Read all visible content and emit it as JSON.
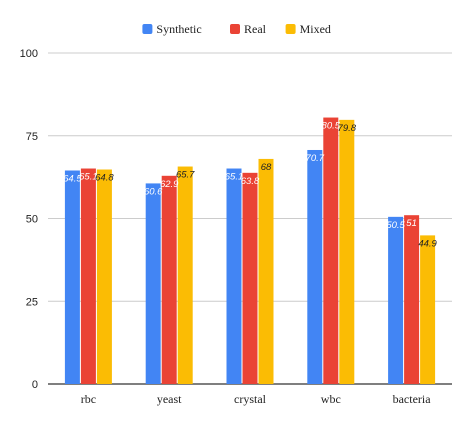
{
  "chart_data": {
    "type": "bar",
    "categories": [
      "rbc",
      "yeast",
      "crystal",
      "wbc",
      "bacteria"
    ],
    "series": [
      {
        "name": "Synthetic",
        "color": "#4285F4",
        "label_color": "#ffffff",
        "values": [
          64.5,
          60.6,
          65.1,
          70.7,
          50.5
        ]
      },
      {
        "name": "Real",
        "color": "#EA4335",
        "label_color": "#ffffff",
        "values": [
          65.1,
          62.9,
          63.8,
          80.5,
          51
        ]
      },
      {
        "name": "Mixed",
        "color": "#FBBC04",
        "label_color": "#222222",
        "values": [
          64.8,
          65.7,
          68,
          79.8,
          44.9
        ]
      }
    ],
    "yticks": [
      "0",
      "25",
      "50",
      "75",
      "100"
    ],
    "ylim": [
      0,
      100
    ],
    "grid": true,
    "legend_position": "top"
  }
}
